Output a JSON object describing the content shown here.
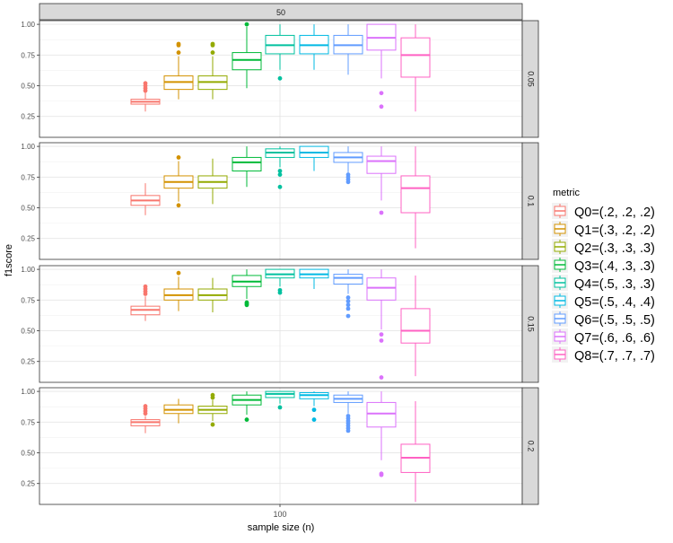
{
  "chart_data": {
    "type": "boxplot",
    "facet_top_label": "50",
    "xlabel": "sample size (n)",
    "ylabel": "f1score",
    "x_tick_labels": [
      "100"
    ],
    "y_ticks": [
      0.25,
      0.5,
      0.75,
      1.0
    ],
    "y_tick_labels": [
      "0.25",
      "0.50",
      "0.75",
      "1.00"
    ],
    "ylim": [
      0.08,
      1.03
    ],
    "legend": {
      "title": "metric",
      "placement": "right",
      "entries": [
        {
          "label": "Q0=(.2, .2, .2)",
          "color": "#F8766D"
        },
        {
          "label": "Q1=(.3, .2, .2)",
          "color": "#D39200"
        },
        {
          "label": "Q2=(.3, .3, .3)",
          "color": "#93AA00"
        },
        {
          "label": "Q3=(.4, .3, .3)",
          "color": "#00BA38"
        },
        {
          "label": "Q4=(.5, .3, .3)",
          "color": "#00C19F"
        },
        {
          "label": "Q5=(.5, .4, .4)",
          "color": "#00B9E3"
        },
        {
          "label": "Q6=(.5, .5, .5)",
          "color": "#619CFF"
        },
        {
          "label": "Q7=(.6, .6, .6)",
          "color": "#DB72FB"
        },
        {
          "label": "Q8=(.7, .7, .7)",
          "color": "#FF61C3"
        }
      ]
    },
    "panels": [
      {
        "facet_label": "0.05",
        "boxes": [
          {
            "q1": 0.35,
            "median": 0.37,
            "q3": 0.39,
            "wlo": 0.29,
            "whi": 0.45,
            "outliers": [
              0.46,
              0.48,
              0.5,
              0.52
            ]
          },
          {
            "q1": 0.47,
            "median": 0.53,
            "q3": 0.58,
            "wlo": 0.39,
            "whi": 0.74,
            "outliers": [
              0.77,
              0.83,
              0.84
            ]
          },
          {
            "q1": 0.47,
            "median": 0.53,
            "q3": 0.58,
            "wlo": 0.39,
            "whi": 0.74,
            "outliers": [
              0.77,
              0.83,
              0.84
            ]
          },
          {
            "q1": 0.63,
            "median": 0.71,
            "q3": 0.77,
            "wlo": 0.48,
            "whi": 0.98,
            "outliers": [
              1.0
            ]
          },
          {
            "q1": 0.76,
            "median": 0.83,
            "q3": 0.91,
            "wlo": 0.63,
            "whi": 1.0,
            "outliers": [
              0.56
            ]
          },
          {
            "q1": 0.76,
            "median": 0.83,
            "q3": 0.91,
            "wlo": 0.63,
            "whi": 1.0,
            "outliers": []
          },
          {
            "q1": 0.76,
            "median": 0.83,
            "q3": 0.91,
            "wlo": 0.59,
            "whi": 1.0,
            "outliers": []
          },
          {
            "q1": 0.79,
            "median": 0.89,
            "q3": 1.0,
            "wlo": 0.56,
            "whi": 1.0,
            "outliers": [
              0.44,
              0.33
            ]
          },
          {
            "q1": 0.57,
            "median": 0.75,
            "q3": 0.89,
            "wlo": 0.29,
            "whi": 1.0,
            "outliers": []
          }
        ]
      },
      {
        "facet_label": "0.1",
        "boxes": [
          {
            "q1": 0.52,
            "median": 0.56,
            "q3": 0.6,
            "wlo": 0.44,
            "whi": 0.7,
            "outliers": []
          },
          {
            "q1": 0.66,
            "median": 0.71,
            "q3": 0.76,
            "wlo": 0.55,
            "whi": 0.88,
            "outliers": [
              0.91,
              0.52
            ]
          },
          {
            "q1": 0.66,
            "median": 0.71,
            "q3": 0.76,
            "wlo": 0.53,
            "whi": 0.9,
            "outliers": []
          },
          {
            "q1": 0.8,
            "median": 0.87,
            "q3": 0.91,
            "wlo": 0.67,
            "whi": 1.0,
            "outliers": []
          },
          {
            "q1": 0.91,
            "median": 0.95,
            "q3": 0.98,
            "wlo": 0.83,
            "whi": 1.0,
            "outliers": [
              0.8,
              0.77,
              0.67
            ]
          },
          {
            "q1": 0.91,
            "median": 0.95,
            "q3": 1.0,
            "wlo": 0.8,
            "whi": 1.0,
            "outliers": []
          },
          {
            "q1": 0.87,
            "median": 0.91,
            "q3": 0.95,
            "wlo": 0.79,
            "whi": 1.0,
            "outliers": [
              0.77,
              0.75,
              0.73,
              0.71
            ]
          },
          {
            "q1": 0.78,
            "median": 0.88,
            "q3": 0.92,
            "wlo": 0.56,
            "whi": 1.0,
            "outliers": [
              0.46
            ]
          },
          {
            "q1": 0.46,
            "median": 0.66,
            "q3": 0.76,
            "wlo": 0.17,
            "whi": 1.0,
            "outliers": []
          }
        ]
      },
      {
        "facet_label": "0.15",
        "boxes": [
          {
            "q1": 0.63,
            "median": 0.67,
            "q3": 0.7,
            "wlo": 0.58,
            "whi": 0.78,
            "outliers": [
              0.8,
              0.82,
              0.84,
              0.86
            ]
          },
          {
            "q1": 0.75,
            "median": 0.79,
            "q3": 0.84,
            "wlo": 0.66,
            "whi": 0.94,
            "outliers": [
              0.97
            ]
          },
          {
            "q1": 0.75,
            "median": 0.79,
            "q3": 0.84,
            "wlo": 0.65,
            "whi": 0.93,
            "outliers": []
          },
          {
            "q1": 0.86,
            "median": 0.9,
            "q3": 0.95,
            "wlo": 0.76,
            "whi": 1.0,
            "outliers": [
              0.73,
              0.72,
              0.71
            ]
          },
          {
            "q1": 0.93,
            "median": 0.96,
            "q3": 1.0,
            "wlo": 0.86,
            "whi": 1.0,
            "outliers": [
              0.83,
              0.81
            ]
          },
          {
            "q1": 0.93,
            "median": 0.96,
            "q3": 1.0,
            "wlo": 0.84,
            "whi": 1.0,
            "outliers": []
          },
          {
            "q1": 0.88,
            "median": 0.93,
            "q3": 0.96,
            "wlo": 0.8,
            "whi": 1.0,
            "outliers": [
              0.77,
              0.74,
              0.71,
              0.68,
              0.62
            ]
          },
          {
            "q1": 0.75,
            "median": 0.85,
            "q3": 0.93,
            "wlo": 0.51,
            "whi": 1.0,
            "outliers": [
              0.47,
              0.42,
              0.12
            ]
          },
          {
            "q1": 0.4,
            "median": 0.5,
            "q3": 0.68,
            "wlo": 0.13,
            "whi": 0.95,
            "outliers": []
          }
        ]
      },
      {
        "facet_label": "0.2",
        "boxes": [
          {
            "q1": 0.72,
            "median": 0.75,
            "q3": 0.77,
            "wlo": 0.66,
            "whi": 0.8,
            "outliers": [
              0.82,
              0.84,
              0.86,
              0.88
            ]
          },
          {
            "q1": 0.82,
            "median": 0.85,
            "q3": 0.89,
            "wlo": 0.74,
            "whi": 0.94,
            "outliers": []
          },
          {
            "q1": 0.82,
            "median": 0.85,
            "q3": 0.88,
            "wlo": 0.76,
            "whi": 0.93,
            "outliers": [
              0.95,
              0.97,
              0.73
            ]
          },
          {
            "q1": 0.89,
            "median": 0.93,
            "q3": 0.97,
            "wlo": 0.81,
            "whi": 1.0,
            "outliers": [
              0.77
            ]
          },
          {
            "q1": 0.95,
            "median": 0.98,
            "q3": 1.0,
            "wlo": 0.9,
            "whi": 1.0,
            "outliers": [
              0.87
            ]
          },
          {
            "q1": 0.94,
            "median": 0.97,
            "q3": 0.99,
            "wlo": 0.88,
            "whi": 1.0,
            "outliers": [
              0.85,
              0.77
            ]
          },
          {
            "q1": 0.91,
            "median": 0.94,
            "q3": 0.97,
            "wlo": 0.82,
            "whi": 1.0,
            "outliers": [
              0.8,
              0.78,
              0.76,
              0.74,
              0.72,
              0.7,
              0.68
            ]
          },
          {
            "q1": 0.71,
            "median": 0.82,
            "q3": 0.91,
            "wlo": 0.44,
            "whi": 1.0,
            "outliers": [
              0.33,
              0.32
            ]
          },
          {
            "q1": 0.34,
            "median": 0.46,
            "q3": 0.57,
            "wlo": 0.1,
            "whi": 0.92,
            "outliers": []
          }
        ]
      }
    ]
  }
}
